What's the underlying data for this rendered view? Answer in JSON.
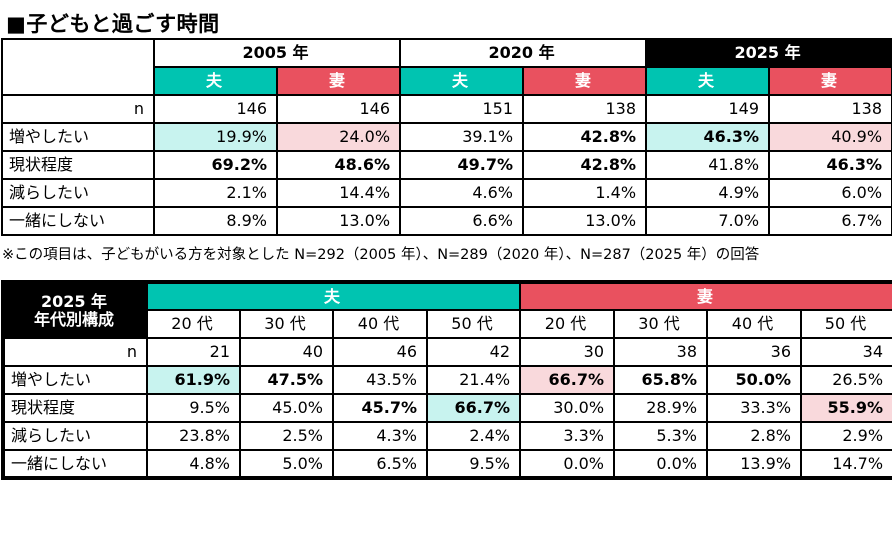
{
  "title": "■子どもと過ごす時間",
  "footnote": "※この項目は、子どもがいる方を対象とした N=292（2005 年）、N=289（2020 年）、N=287（2025 年）の回答",
  "colors": {
    "teal": "#00C4B1",
    "red": "#E9515F",
    "highlight_cyan": "#C8F3EF",
    "highlight_pink": "#F9D9DC",
    "emphasis_black": "#000000"
  },
  "table_main": {
    "year_groups": [
      {
        "label": "2005 年",
        "emphasis": false
      },
      {
        "label": "2020 年",
        "emphasis": false
      },
      {
        "label": "2025 年",
        "emphasis": true
      }
    ],
    "husband_label": "夫",
    "wife_label": "妻",
    "rows": [
      {
        "label": "n",
        "label_align": "right",
        "cells": [
          {
            "v": "146"
          },
          {
            "v": "146"
          },
          {
            "v": "151"
          },
          {
            "v": "138"
          },
          {
            "v": "149"
          },
          {
            "v": "138"
          }
        ]
      },
      {
        "label": "増やしたい",
        "cells": [
          {
            "v": "19.9%",
            "hl": "cyan"
          },
          {
            "v": "24.0%",
            "hl": "pink"
          },
          {
            "v": "39.1%"
          },
          {
            "v": "42.8%",
            "b": true
          },
          {
            "v": "46.3%",
            "b": true,
            "hl": "cyan"
          },
          {
            "v": "40.9%",
            "hl": "pink"
          }
        ]
      },
      {
        "label": "現状程度",
        "cells": [
          {
            "v": "69.2%",
            "b": true
          },
          {
            "v": "48.6%",
            "b": true
          },
          {
            "v": "49.7%",
            "b": true
          },
          {
            "v": "42.8%",
            "b": true
          },
          {
            "v": "41.8%"
          },
          {
            "v": "46.3%",
            "b": true
          }
        ]
      },
      {
        "label": "減らしたい",
        "cells": [
          {
            "v": "2.1%"
          },
          {
            "v": "14.4%"
          },
          {
            "v": "4.6%"
          },
          {
            "v": "1.4%"
          },
          {
            "v": "4.9%"
          },
          {
            "v": "6.0%"
          }
        ]
      },
      {
        "label": "一緒にしない",
        "cells": [
          {
            "v": "8.9%"
          },
          {
            "v": "13.0%"
          },
          {
            "v": "6.6%"
          },
          {
            "v": "13.0%"
          },
          {
            "v": "7.0%"
          },
          {
            "v": "6.7%"
          }
        ]
      }
    ]
  },
  "table_age": {
    "corner_label_line1": "2025 年",
    "corner_label_line2": "年代別構成",
    "husband_label": "夫",
    "wife_label": "妻",
    "age_labels": [
      "20 代",
      "30 代",
      "40 代",
      "50 代",
      "20 代",
      "30 代",
      "40 代",
      "50 代"
    ],
    "rows": [
      {
        "label": "n",
        "label_align": "right",
        "cells": [
          {
            "v": "21"
          },
          {
            "v": "40"
          },
          {
            "v": "46"
          },
          {
            "v": "42"
          },
          {
            "v": "30"
          },
          {
            "v": "38"
          },
          {
            "v": "36"
          },
          {
            "v": "34"
          }
        ]
      },
      {
        "label": "増やしたい",
        "cells": [
          {
            "v": "61.9%",
            "b": true,
            "hl": "cyan"
          },
          {
            "v": "47.5%",
            "b": true
          },
          {
            "v": "43.5%"
          },
          {
            "v": "21.4%"
          },
          {
            "v": "66.7%",
            "b": true,
            "hl": "pink"
          },
          {
            "v": "65.8%",
            "b": true
          },
          {
            "v": "50.0%",
            "b": true
          },
          {
            "v": "26.5%"
          }
        ]
      },
      {
        "label": "現状程度",
        "cells": [
          {
            "v": "9.5%"
          },
          {
            "v": "45.0%"
          },
          {
            "v": "45.7%",
            "b": true
          },
          {
            "v": "66.7%",
            "b": true,
            "hl": "cyan"
          },
          {
            "v": "30.0%"
          },
          {
            "v": "28.9%"
          },
          {
            "v": "33.3%"
          },
          {
            "v": "55.9%",
            "b": true,
            "hl": "pink"
          }
        ]
      },
      {
        "label": "減らしたい",
        "cells": [
          {
            "v": "23.8%"
          },
          {
            "v": "2.5%"
          },
          {
            "v": "4.3%"
          },
          {
            "v": "2.4%"
          },
          {
            "v": "3.3%"
          },
          {
            "v": "5.3%"
          },
          {
            "v": "2.8%"
          },
          {
            "v": "2.9%"
          }
        ]
      },
      {
        "label": "一緒にしない",
        "cells": [
          {
            "v": "4.8%"
          },
          {
            "v": "5.0%"
          },
          {
            "v": "6.5%"
          },
          {
            "v": "9.5%"
          },
          {
            "v": "0.0%"
          },
          {
            "v": "0.0%"
          },
          {
            "v": "13.9%"
          },
          {
            "v": "14.7%"
          }
        ]
      }
    ]
  }
}
